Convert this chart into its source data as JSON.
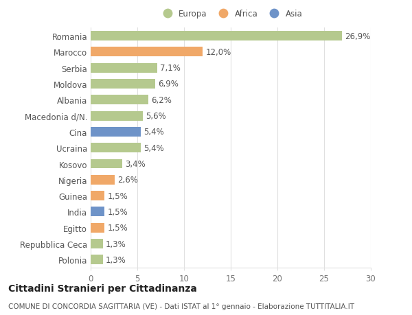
{
  "countries": [
    "Romania",
    "Marocco",
    "Serbia",
    "Moldova",
    "Albania",
    "Macedonia d/N.",
    "Cina",
    "Ucraina",
    "Kosovo",
    "Nigeria",
    "Guinea",
    "India",
    "Egitto",
    "Repubblica Ceca",
    "Polonia"
  ],
  "values": [
    26.9,
    12.0,
    7.1,
    6.9,
    6.2,
    5.6,
    5.4,
    5.4,
    3.4,
    2.6,
    1.5,
    1.5,
    1.5,
    1.3,
    1.3
  ],
  "labels": [
    "26,9%",
    "12,0%",
    "7,1%",
    "6,9%",
    "6,2%",
    "5,6%",
    "5,4%",
    "5,4%",
    "3,4%",
    "2,6%",
    "1,5%",
    "1,5%",
    "1,5%",
    "1,3%",
    "1,3%"
  ],
  "continents": [
    "Europa",
    "Africa",
    "Europa",
    "Europa",
    "Europa",
    "Europa",
    "Asia",
    "Europa",
    "Europa",
    "Africa",
    "Africa",
    "Asia",
    "Africa",
    "Europa",
    "Europa"
  ],
  "colors": {
    "Europa": "#b5c98e",
    "Africa": "#f0a868",
    "Asia": "#6e93c8"
  },
  "legend_labels": [
    "Europa",
    "Africa",
    "Asia"
  ],
  "title": "Cittadini Stranieri per Cittadinanza",
  "subtitle": "COMUNE DI CONCORDIA SAGITTARIA (VE) - Dati ISTAT al 1° gennaio - Elaborazione TUTTITALIA.IT",
  "xlim": [
    0,
    30
  ],
  "xticks": [
    0,
    5,
    10,
    15,
    20,
    25,
    30
  ],
  "background_color": "#ffffff",
  "grid_color": "#e0e0e0",
  "bar_height": 0.6,
  "label_fontsize": 8.5,
  "tick_fontsize": 8.5,
  "title_fontsize": 10,
  "subtitle_fontsize": 7.5
}
